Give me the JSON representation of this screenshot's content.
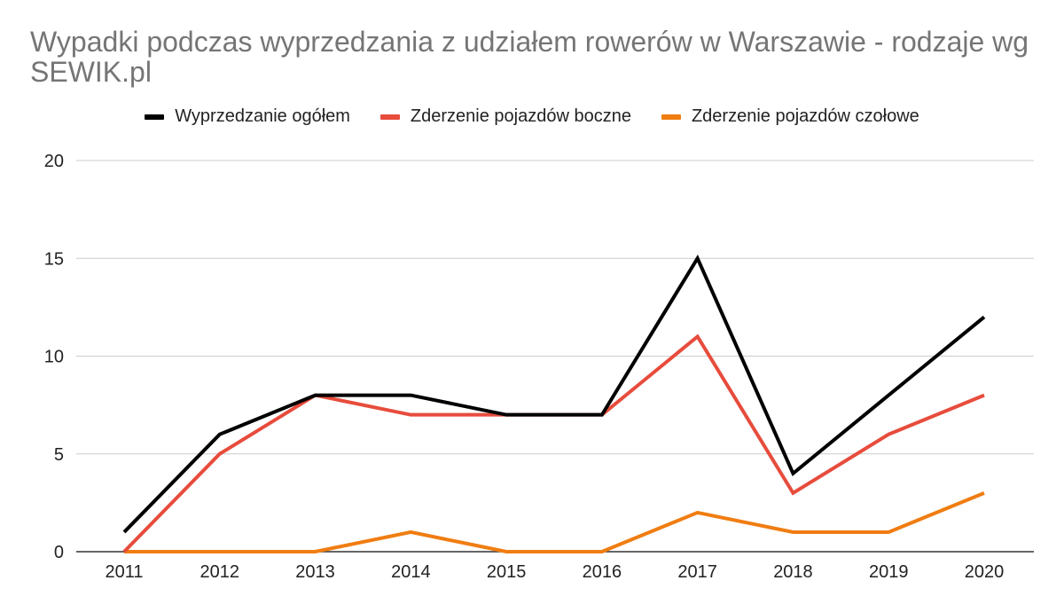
{
  "chart_data": {
    "type": "line",
    "title": "Wypadki podczas wyprzedzania z udziałem rowerów w Warszawie - rodzaje wg SEWIK.pl",
    "xlabel": "",
    "ylabel": "",
    "categories": [
      "2011",
      "2012",
      "2013",
      "2014",
      "2015",
      "2016",
      "2017",
      "2018",
      "2019",
      "2020"
    ],
    "ylim": [
      0,
      20
    ],
    "yticks": [
      "0",
      "5",
      "10",
      "15",
      "20"
    ],
    "grid": true,
    "legend_position": "top",
    "series": [
      {
        "name": "Wyprzedzanie ogółem",
        "color": "#000000",
        "values": [
          1,
          6,
          8,
          8,
          7,
          7,
          15,
          4,
          8,
          12
        ]
      },
      {
        "name": "Zderzenie pojazdów boczne",
        "color": "#e74c3c",
        "values": [
          0,
          5,
          8,
          7,
          7,
          7,
          11,
          3,
          6,
          8
        ]
      },
      {
        "name": "Zderzenie pojazdów czołowe",
        "color": "#f07d12",
        "values": [
          0,
          0,
          0,
          1,
          0,
          0,
          2,
          1,
          1,
          3
        ]
      }
    ]
  }
}
